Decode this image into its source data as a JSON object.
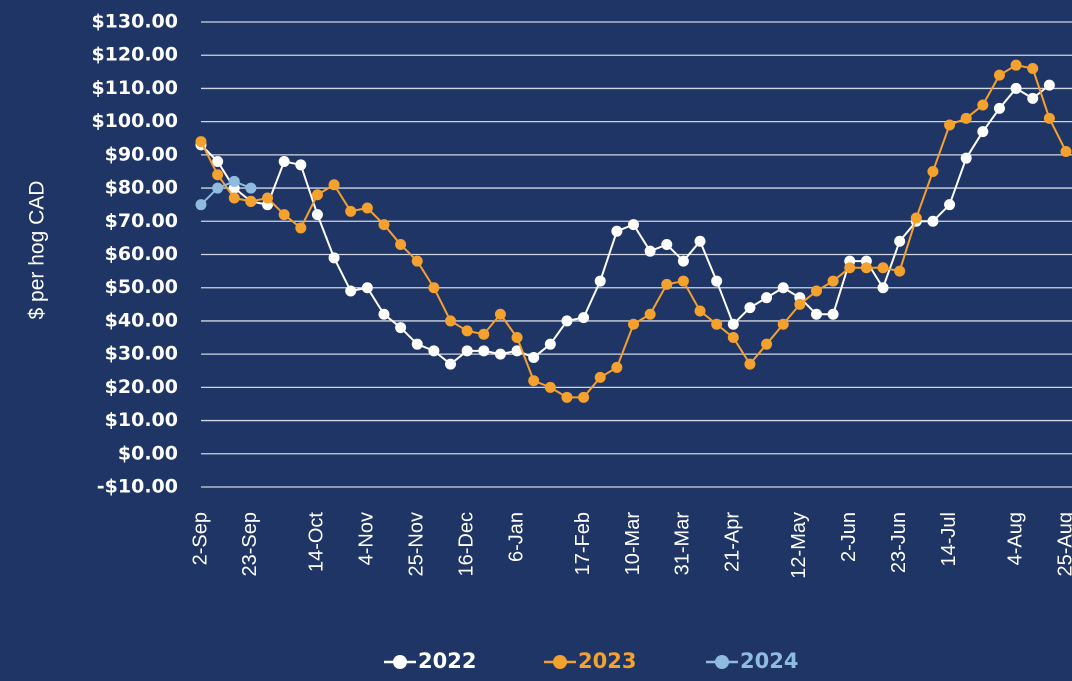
{
  "chart_data": {
    "type": "line",
    "y_label": "$ per hog CAD",
    "categories": [
      "2-Sep",
      null,
      null,
      "23-Sep",
      null,
      null,
      null,
      "14-Oct",
      null,
      null,
      "4-Nov",
      null,
      null,
      "25-Nov",
      null,
      null,
      "16-Dec",
      null,
      null,
      "6-Jan",
      null,
      null,
      null,
      "17-Feb",
      null,
      null,
      "10-Mar",
      null,
      null,
      "31-Mar",
      null,
      null,
      "21-Apr",
      null,
      null,
      null,
      "12-May",
      null,
      null,
      "2-Jun",
      null,
      null,
      "23-Jun",
      null,
      null,
      "14-Jul",
      null,
      null,
      null,
      "4-Aug",
      null,
      null,
      "25-Aug"
    ],
    "series": [
      {
        "name": "2022",
        "color": "#ffffff",
        "values": [
          93,
          88,
          80,
          76,
          75,
          88,
          87,
          72,
          59,
          49,
          50,
          42,
          38,
          33,
          31,
          27,
          31,
          31,
          30,
          31,
          29,
          33,
          40,
          41,
          52,
          67,
          69,
          61,
          63,
          58,
          64,
          52,
          39,
          44,
          47,
          50,
          47,
          42,
          42,
          58,
          58,
          50,
          64,
          70,
          70,
          75,
          89,
          97,
          104,
          110,
          107,
          111,
          null
        ]
      },
      {
        "name": "2023",
        "color": "#f4a12e",
        "values": [
          94,
          84,
          77,
          76,
          77,
          72,
          68,
          78,
          81,
          73,
          74,
          69,
          63,
          58,
          50,
          40,
          37,
          36,
          42,
          35,
          22,
          20,
          17,
          17,
          23,
          26,
          39,
          42,
          51,
          52,
          43,
          39,
          35,
          27,
          33,
          39,
          45,
          49,
          52,
          56,
          56,
          56,
          55,
          71,
          85,
          99,
          101,
          105,
          114,
          117,
          116,
          101,
          91
        ]
      },
      {
        "name": "2024",
        "color": "#8fbbe0",
        "values": [
          75,
          80,
          82,
          80,
          null,
          null,
          null,
          null,
          null,
          null,
          null,
          null,
          null,
          null,
          null,
          null,
          null,
          null,
          null,
          null,
          null,
          null,
          null,
          null,
          null,
          null,
          null,
          null,
          null,
          null,
          null,
          null,
          null,
          null,
          null,
          null,
          null,
          null,
          null,
          null,
          null,
          null,
          null,
          null,
          null,
          null,
          null,
          null,
          null,
          null,
          null,
          null,
          null
        ]
      }
    ],
    "ylim": [
      -10,
      130
    ],
    "yticks": [
      {
        "value": -10,
        "label": "-$10.00"
      },
      {
        "value": 0,
        "label": "$0.00"
      },
      {
        "value": 10,
        "label": "$10.00"
      },
      {
        "value": 20,
        "label": "$20.00"
      },
      {
        "value": 30,
        "label": "$30.00"
      },
      {
        "value": 40,
        "label": "$40.00"
      },
      {
        "value": 50,
        "label": "$50.00"
      },
      {
        "value": 60,
        "label": "$60.00"
      },
      {
        "value": 70,
        "label": "$70.00"
      },
      {
        "value": 80,
        "label": "$80.00"
      },
      {
        "value": 90,
        "label": "$90.00"
      },
      {
        "value": 100,
        "label": "$100.00"
      },
      {
        "value": 110,
        "label": "$110.00"
      },
      {
        "value": 120,
        "label": "$120.00"
      },
      {
        "value": 130,
        "label": "$130.00"
      }
    ],
    "grid": true,
    "legend": "bottom"
  }
}
